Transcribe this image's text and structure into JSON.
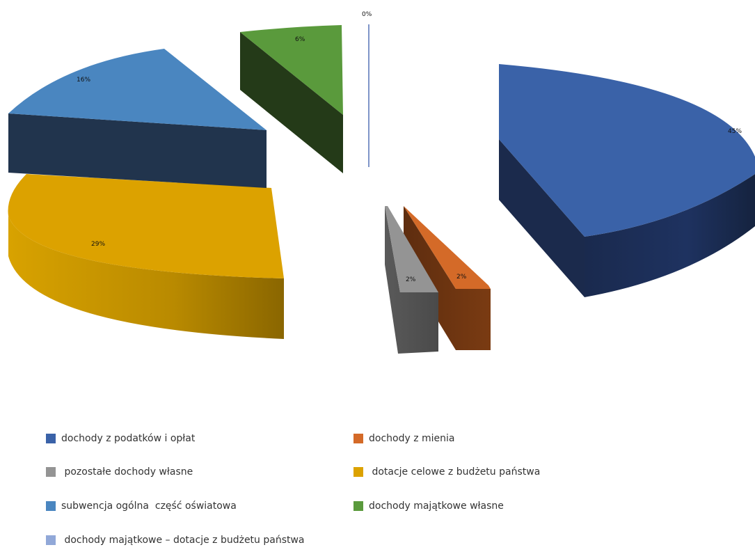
{
  "chart_data": {
    "type": "pie",
    "slices": [
      {
        "label": "dochody z podatków i opłat",
        "value": 45,
        "data_label": "45%",
        "color": "#3a62a8"
      },
      {
        "label": "dochody z mienia",
        "value": 2,
        "data_label": "2%",
        "color": "#d46a28"
      },
      {
        "label": " pozostałe dochody własne",
        "value": 2,
        "data_label": "2%",
        "color": "#949494"
      },
      {
        "label": " dotacje celowe z budżetu państwa",
        "value": 29,
        "data_label": "29%",
        "color": "#dca200"
      },
      {
        "label": "subwencja ogólna  część oświatowa",
        "value": 16,
        "data_label": "16%",
        "color": "#4a86c0"
      },
      {
        "label": "dochody majątkowe własne",
        "value": 6,
        "data_label": "6%",
        "color": "#5a9a3c"
      },
      {
        "label": " dochody majątkowe – dotacje z budżetu państwa",
        "value": 0,
        "data_label": "0%",
        "color": "#91a8d8"
      }
    ],
    "legend_position": "bottom"
  }
}
